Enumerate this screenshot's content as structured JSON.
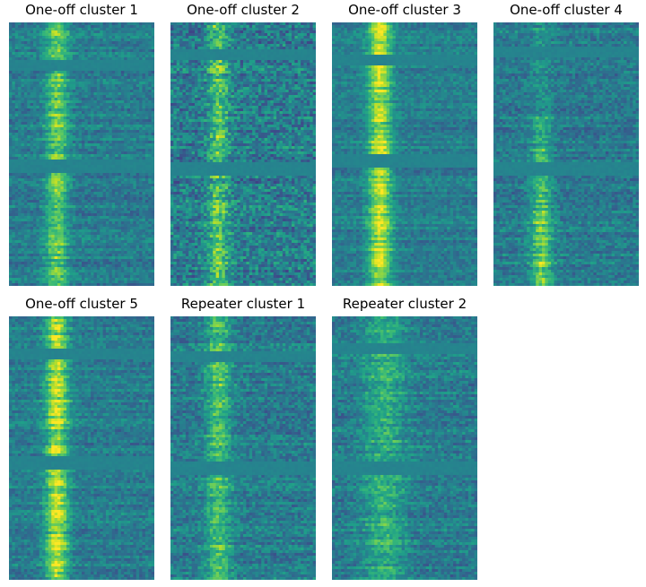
{
  "chart_data": [
    {
      "type": "heatmap",
      "title": "One-off cluster 1",
      "xlabel": "",
      "ylabel": "",
      "colormap": "viridis",
      "grid": false,
      "burst_column_fraction": 0.33
    },
    {
      "type": "heatmap",
      "title": "One-off cluster 2",
      "xlabel": "",
      "ylabel": "",
      "colormap": "viridis",
      "grid": false,
      "burst_column_fraction": 0.33
    },
    {
      "type": "heatmap",
      "title": "One-off cluster 3",
      "xlabel": "",
      "ylabel": "",
      "colormap": "viridis",
      "grid": false,
      "burst_column_fraction": 0.33
    },
    {
      "type": "heatmap",
      "title": "One-off cluster 4",
      "xlabel": "",
      "ylabel": "",
      "colormap": "viridis",
      "grid": false,
      "burst_column_fraction": 0.33
    },
    {
      "type": "heatmap",
      "title": "One-off cluster 5",
      "xlabel": "",
      "ylabel": "",
      "colormap": "viridis",
      "grid": false,
      "burst_column_fraction": 0.33
    },
    {
      "type": "heatmap",
      "title": "Repeater cluster 1",
      "xlabel": "",
      "ylabel": "",
      "colormap": "viridis",
      "grid": false,
      "burst_column_fraction": 0.33
    },
    {
      "type": "heatmap",
      "title": "Repeater cluster 2",
      "xlabel": "",
      "ylabel": "",
      "colormap": "viridis",
      "grid": false,
      "burst_column_fraction": 0.33
    }
  ]
}
